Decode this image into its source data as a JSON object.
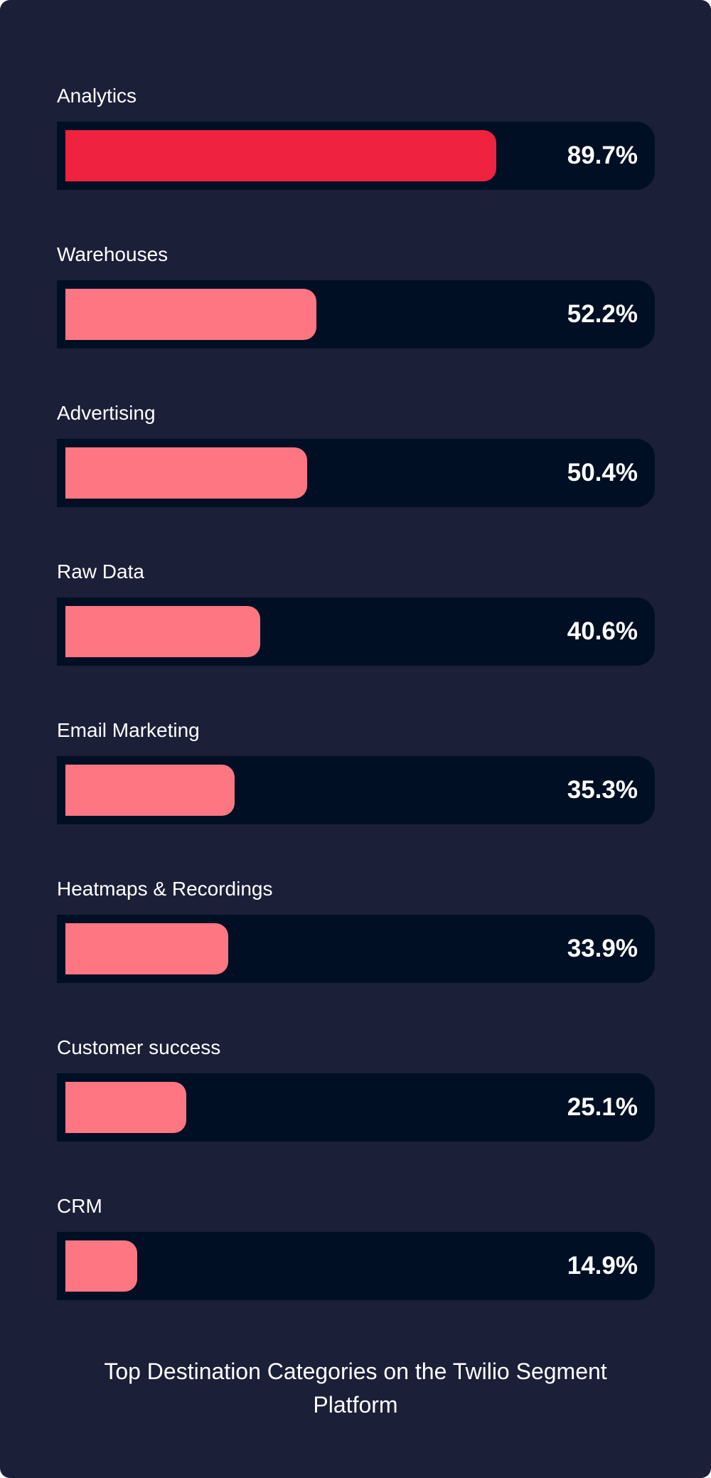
{
  "chart_data": {
    "type": "bar",
    "orientation": "horizontal",
    "title": "Top Destination Categories on the Twilio Segment Platform",
    "categories": [
      "Analytics",
      "Warehouses",
      "Advertising",
      "Raw Data",
      "Email Marketing",
      "Heatmaps & Recordings",
      "Customer success",
      "CRM"
    ],
    "values": [
      89.7,
      52.2,
      50.4,
      40.6,
      35.3,
      33.9,
      25.1,
      14.9
    ],
    "value_labels": [
      "89.7%",
      "52.2%",
      "50.4%",
      "40.6%",
      "35.3%",
      "33.9%",
      "25.1%",
      "14.9%"
    ],
    "xlim": [
      0,
      100
    ],
    "grid": false,
    "legend": "none",
    "colors": {
      "background": "#1b1f38",
      "track": "#010f24",
      "highlight_bar": "#ef233f",
      "bar": "#fd7682",
      "text": "#ffffff"
    }
  }
}
